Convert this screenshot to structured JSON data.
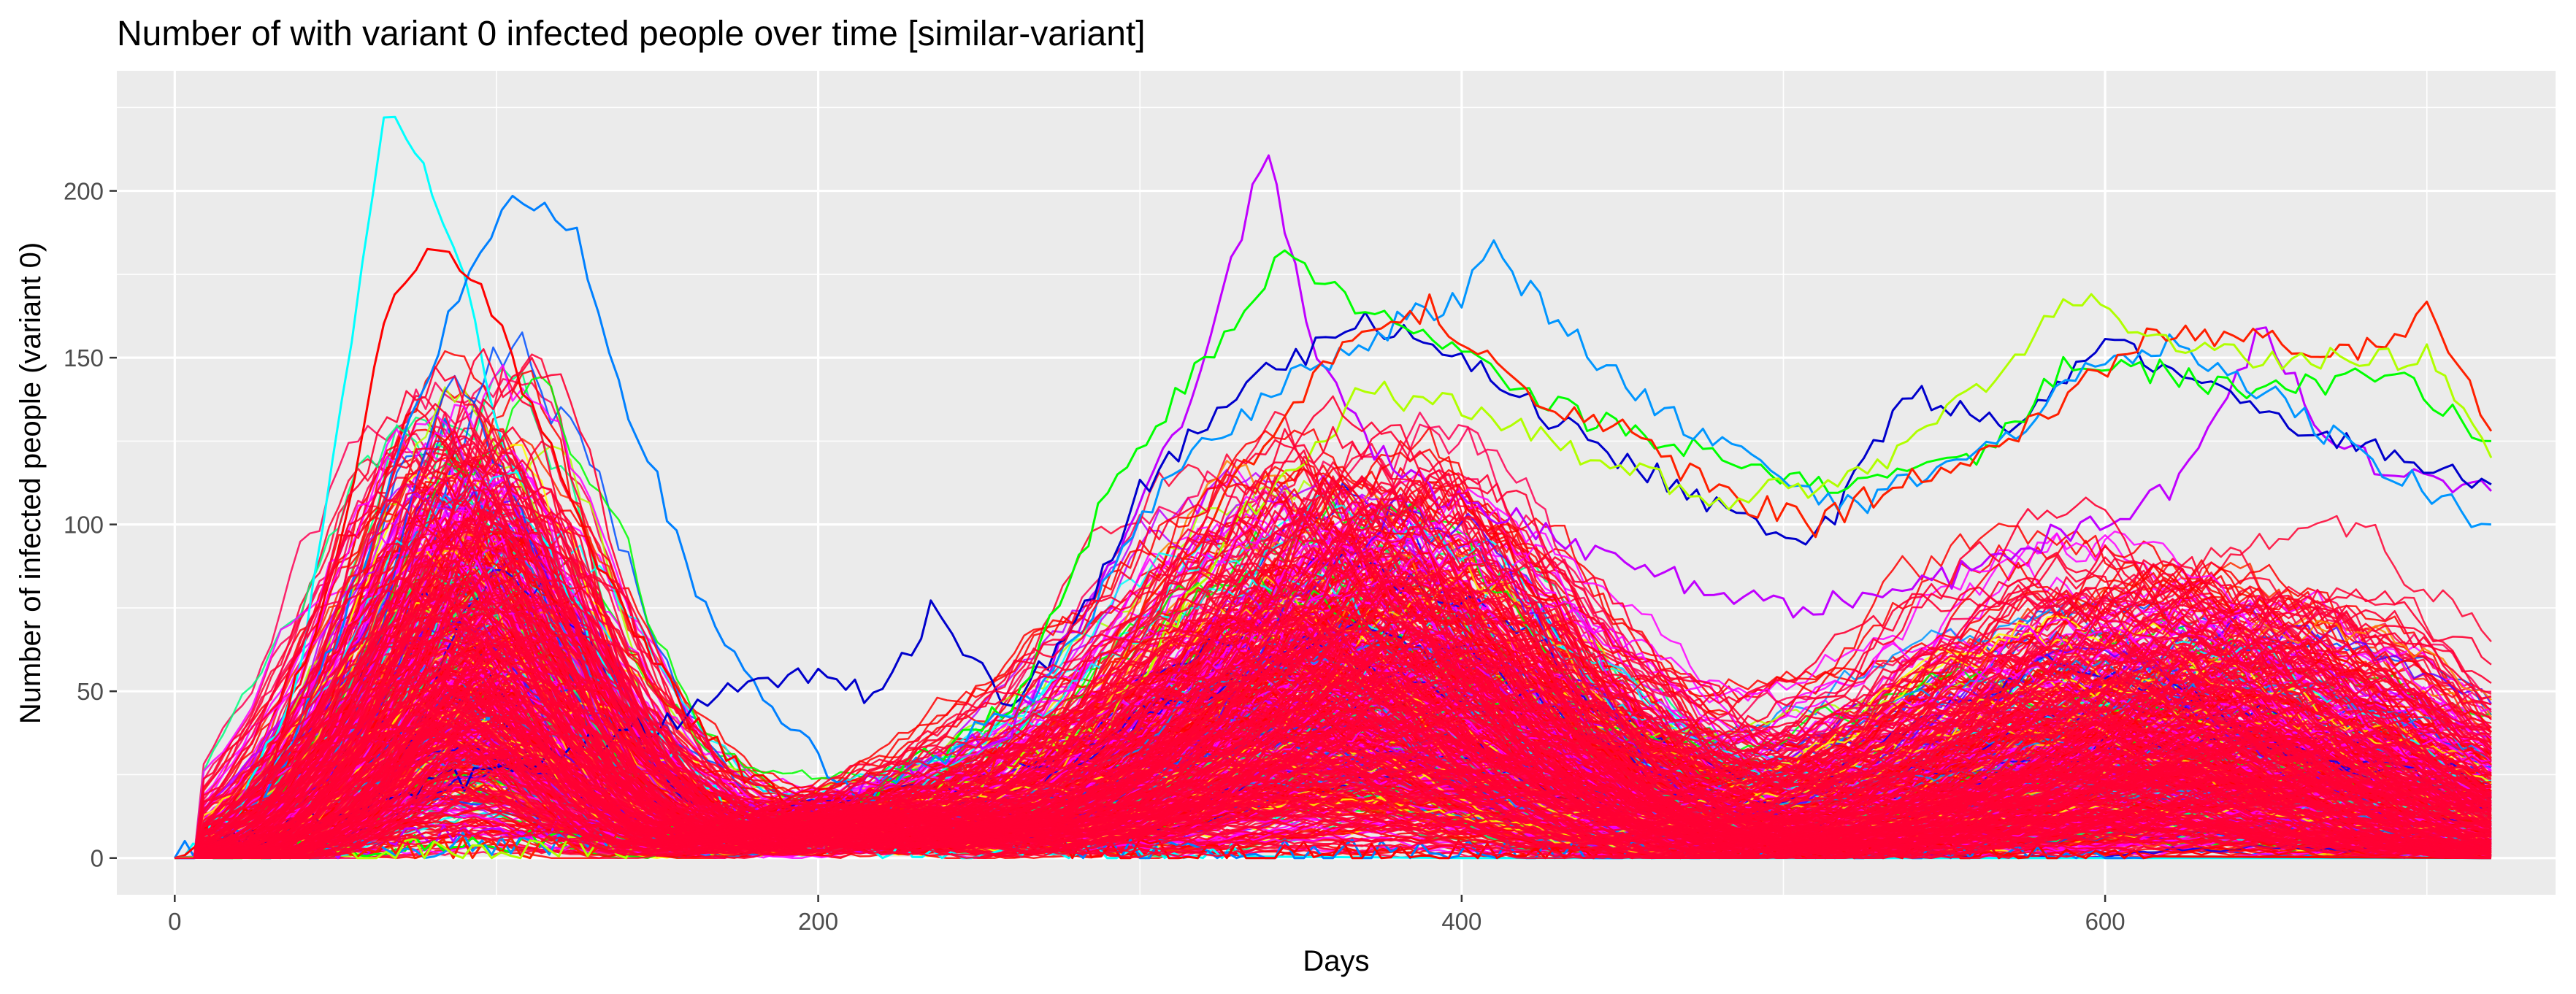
{
  "chart_data": {
    "type": "line",
    "title": "Number of with variant 0 infected people over time [similar-variant]",
    "xlabel": "Days",
    "ylabel": "Number of infected people (variant 0)",
    "xlim": [
      -18,
      740
    ],
    "ylim": [
      -11,
      236
    ],
    "x_ticks": [
      0,
      200,
      400,
      600
    ],
    "y_ticks": [
      0,
      50,
      100,
      150,
      200
    ],
    "x_tick_labels": [
      "0",
      "200",
      "400",
      "600"
    ],
    "y_tick_labels": [
      "0",
      "50",
      "100",
      "150",
      "200"
    ],
    "grid": true,
    "legend": "none",
    "x_range": [
      0,
      720
    ],
    "series_count_estimate": 600,
    "palette": [
      "#FF0000",
      "#FF3000",
      "#FF8000",
      "#FFD700",
      "#FFFF00",
      "#B0FF00",
      "#00FF00",
      "#00FF80",
      "#00FFFF",
      "#0096FF",
      "#0050FF",
      "#0000FF",
      "#6000FF",
      "#C000FF",
      "#FF00FF",
      "#FF0080"
    ],
    "dominant_color": "#FF0033",
    "highlighted_series": [
      {
        "color": "#00FFFF",
        "points": [
          [
            0,
            0
          ],
          [
            20,
            14
          ],
          [
            40,
            60
          ],
          [
            55,
            155
          ],
          [
            65,
            222
          ],
          [
            72,
            215
          ],
          [
            80,
            200
          ],
          [
            90,
            172
          ],
          [
            100,
            130
          ],
          [
            110,
            105
          ],
          [
            120,
            85
          ],
          [
            135,
            55
          ],
          [
            150,
            35
          ],
          [
            165,
            20
          ],
          [
            180,
            10
          ],
          [
            200,
            4
          ],
          [
            220,
            2
          ],
          [
            260,
            1
          ],
          [
            400,
            0
          ],
          [
            720,
            0
          ]
        ]
      },
      {
        "color": "#0080FF",
        "points": [
          [
            0,
            0
          ],
          [
            25,
            12
          ],
          [
            50,
            65
          ],
          [
            70,
            120
          ],
          [
            85,
            160
          ],
          [
            95,
            180
          ],
          [
            105,
            200
          ],
          [
            115,
            195
          ],
          [
            125,
            185
          ],
          [
            135,
            150
          ],
          [
            150,
            112
          ],
          [
            165,
            75
          ],
          [
            180,
            50
          ],
          [
            200,
            30
          ],
          [
            220,
            16
          ],
          [
            250,
            6
          ],
          [
            300,
            2
          ],
          [
            720,
            0
          ]
        ]
      },
      {
        "color": "#FF0000",
        "points": [
          [
            0,
            0
          ],
          [
            25,
            14
          ],
          [
            50,
            90
          ],
          [
            65,
            160
          ],
          [
            75,
            180
          ],
          [
            82,
            186
          ],
          [
            92,
            175
          ],
          [
            105,
            150
          ],
          [
            120,
            115
          ],
          [
            140,
            72
          ],
          [
            160,
            42
          ],
          [
            180,
            24
          ],
          [
            200,
            12
          ],
          [
            240,
            5
          ],
          [
            300,
            2
          ],
          [
            720,
            0
          ]
        ]
      },
      {
        "color": "#C000FF",
        "points": [
          [
            0,
            0
          ],
          [
            200,
            15
          ],
          [
            260,
            40
          ],
          [
            290,
            85
          ],
          [
            310,
            125
          ],
          [
            325,
            165
          ],
          [
            335,
            200
          ],
          [
            340,
            210
          ],
          [
            345,
            190
          ],
          [
            355,
            150
          ],
          [
            370,
            125
          ],
          [
            390,
            110
          ],
          [
            420,
            100
          ],
          [
            460,
            85
          ],
          [
            500,
            75
          ],
          [
            540,
            80
          ],
          [
            580,
            95
          ],
          [
            620,
            110
          ],
          [
            650,
            160
          ],
          [
            665,
            130
          ],
          [
            690,
            115
          ],
          [
            720,
            110
          ]
        ]
      },
      {
        "color": "#0000CC",
        "points": [
          [
            0,
            0
          ],
          [
            150,
            40
          ],
          [
            175,
            50
          ],
          [
            200,
            55
          ],
          [
            220,
            48
          ],
          [
            235,
            75
          ],
          [
            245,
            62
          ],
          [
            260,
            45
          ],
          [
            280,
            70
          ],
          [
            300,
            110
          ],
          [
            330,
            140
          ],
          [
            370,
            160
          ],
          [
            400,
            150
          ],
          [
            430,
            130
          ],
          [
            470,
            110
          ],
          [
            510,
            95
          ],
          [
            540,
            140
          ],
          [
            570,
            130
          ],
          [
            600,
            155
          ],
          [
            630,
            140
          ],
          [
            660,
            130
          ],
          [
            690,
            120
          ],
          [
            720,
            112
          ]
        ]
      },
      {
        "color": "#00FF00",
        "points": [
          [
            0,
            0
          ],
          [
            200,
            10
          ],
          [
            260,
            45
          ],
          [
            290,
            110
          ],
          [
            320,
            150
          ],
          [
            345,
            180
          ],
          [
            370,
            165
          ],
          [
            400,
            150
          ],
          [
            430,
            135
          ],
          [
            460,
            125
          ],
          [
            490,
            118
          ],
          [
            520,
            112
          ],
          [
            560,
            118
          ],
          [
            590,
            150
          ],
          [
            620,
            145
          ],
          [
            650,
            140
          ],
          [
            690,
            145
          ],
          [
            720,
            125
          ]
        ]
      },
      {
        "color": "#0096FF",
        "points": [
          [
            0,
            0
          ],
          [
            200,
            8
          ],
          [
            270,
            50
          ],
          [
            310,
            115
          ],
          [
            350,
            145
          ],
          [
            380,
            160
          ],
          [
            400,
            168
          ],
          [
            410,
            182
          ],
          [
            430,
            160
          ],
          [
            460,
            135
          ],
          [
            490,
            120
          ],
          [
            520,
            105
          ],
          [
            560,
            120
          ],
          [
            600,
            150
          ],
          [
            620,
            155
          ],
          [
            650,
            140
          ],
          [
            680,
            120
          ],
          [
            720,
            100
          ]
        ]
      },
      {
        "color": "#FF2000",
        "points": [
          [
            0,
            0
          ],
          [
            200,
            6
          ],
          [
            280,
            40
          ],
          [
            320,
            100
          ],
          [
            360,
            150
          ],
          [
            390,
            165
          ],
          [
            420,
            140
          ],
          [
            450,
            128
          ],
          [
            480,
            110
          ],
          [
            510,
            100
          ],
          [
            540,
            115
          ],
          [
            570,
            125
          ],
          [
            610,
            155
          ],
          [
            640,
            158
          ],
          [
            670,
            150
          ],
          [
            690,
            155
          ],
          [
            700,
            163
          ],
          [
            710,
            150
          ],
          [
            720,
            128
          ]
        ]
      },
      {
        "color": "#B0FF00",
        "points": [
          [
            0,
            0
          ],
          [
            200,
            5
          ],
          [
            290,
            40
          ],
          [
            330,
            100
          ],
          [
            370,
            140
          ],
          [
            400,
            135
          ],
          [
            440,
            120
          ],
          [
            480,
            108
          ],
          [
            520,
            112
          ],
          [
            560,
            140
          ],
          [
            590,
            168
          ],
          [
            610,
            160
          ],
          [
            640,
            150
          ],
          [
            670,
            150
          ],
          [
            700,
            150
          ],
          [
            720,
            120
          ]
        ]
      }
    ]
  }
}
